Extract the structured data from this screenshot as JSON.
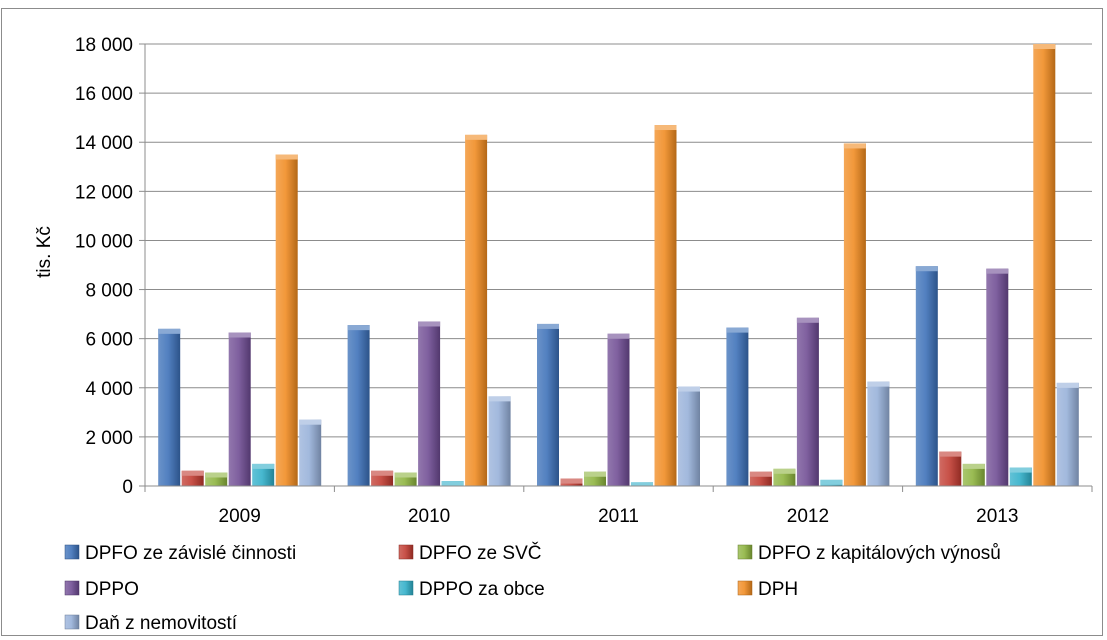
{
  "chart_data": {
    "type": "bar",
    "title": "",
    "xlabel": "",
    "ylabel": "tis. Kč",
    "ylim": [
      0,
      18000
    ],
    "yticks": [
      0,
      2000,
      4000,
      6000,
      8000,
      10000,
      12000,
      14000,
      16000,
      18000
    ],
    "ytick_labels": [
      "0",
      "2 000",
      "4 000",
      "6 000",
      "8 000",
      "10 000",
      "12 000",
      "14 000",
      "16 000",
      "18 000"
    ],
    "categories": [
      "2009",
      "2010",
      "2011",
      "2012",
      "2013"
    ],
    "grid": true,
    "legend_position": "bottom",
    "series": [
      {
        "name": "DPFO ze závislé činnosti",
        "color": "#3a6fb7",
        "values": [
          6400,
          6550,
          6600,
          6450,
          8950
        ]
      },
      {
        "name": "DPFO ze SVČ",
        "color": "#c0392f",
        "values": [
          620,
          620,
          300,
          580,
          1400
        ]
      },
      {
        "name": "DPFO z kapitálových výnosů",
        "color": "#8cb33d",
        "values": [
          550,
          550,
          580,
          700,
          900
        ]
      },
      {
        "name": "DPPO",
        "color": "#6d4a92",
        "values": [
          6250,
          6700,
          6200,
          6850,
          8850
        ]
      },
      {
        "name": "DPPO za obce",
        "color": "#2eaec8",
        "values": [
          900,
          200,
          150,
          250,
          750
        ]
      },
      {
        "name": "DPH",
        "color": "#f08a1f",
        "values": [
          13500,
          14300,
          14700,
          13950,
          18000
        ]
      },
      {
        "name": "Daň z nemovitostí",
        "color": "#95afd8",
        "values": [
          2700,
          3650,
          4050,
          4250,
          4200
        ]
      }
    ]
  }
}
